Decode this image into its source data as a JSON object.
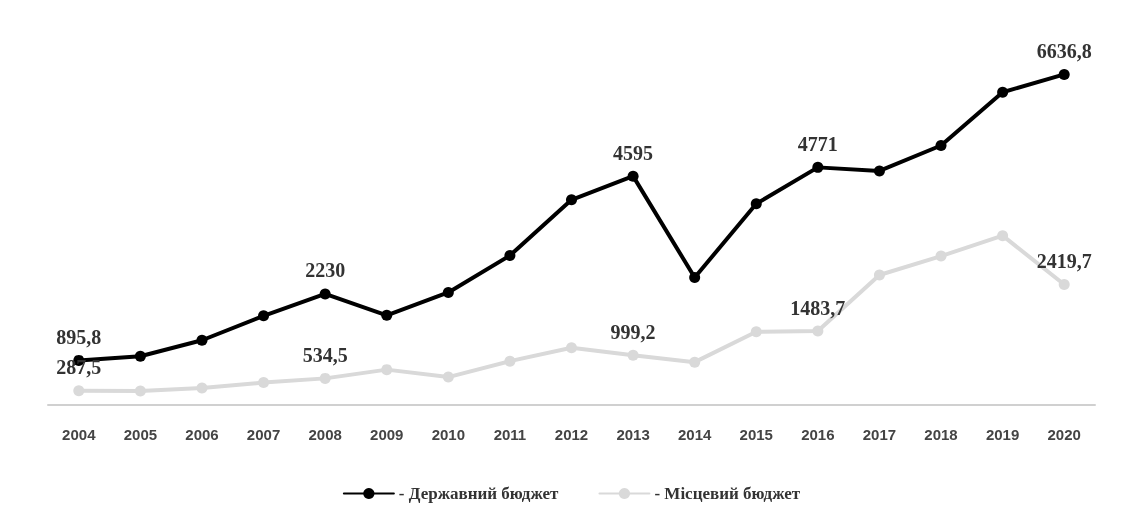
{
  "chart_data": {
    "type": "line",
    "categories": [
      "2004",
      "2005",
      "2006",
      "2007",
      "2008",
      "2009",
      "2010",
      "2011",
      "2012",
      "2013",
      "2014",
      "2015",
      "2016",
      "2017",
      "2018",
      "2019",
      "2020"
    ],
    "series": [
      {
        "name": "- Державний бюджет",
        "color": "#000000",
        "values": [
          895.8,
          980,
          1300,
          1790,
          2230,
          1800,
          2260,
          3000,
          4120,
          4595,
          2560,
          4040,
          4771,
          4700,
          5210,
          6280,
          6636.8
        ],
        "value_labels": [
          "895,8",
          null,
          null,
          null,
          "2230",
          null,
          null,
          null,
          null,
          "4595",
          null,
          null,
          "4771",
          null,
          null,
          null,
          "6636,8"
        ]
      },
      {
        "name": "- Місцевий бюджет",
        "color": "#d9d9d9",
        "values": [
          287.5,
          280,
          340,
          450,
          534.5,
          710,
          560,
          880,
          1150,
          999.2,
          860,
          1470,
          1483.7,
          2610,
          2990,
          3400,
          2419.7
        ],
        "value_labels": [
          "287,5",
          null,
          null,
          null,
          "534,5",
          null,
          null,
          null,
          null,
          "999,2",
          null,
          null,
          "1483,7",
          null,
          null,
          null,
          "2419,7"
        ]
      }
    ],
    "marker": "circle",
    "line_style": "solid",
    "legend": "bottom",
    "grid": false
  }
}
